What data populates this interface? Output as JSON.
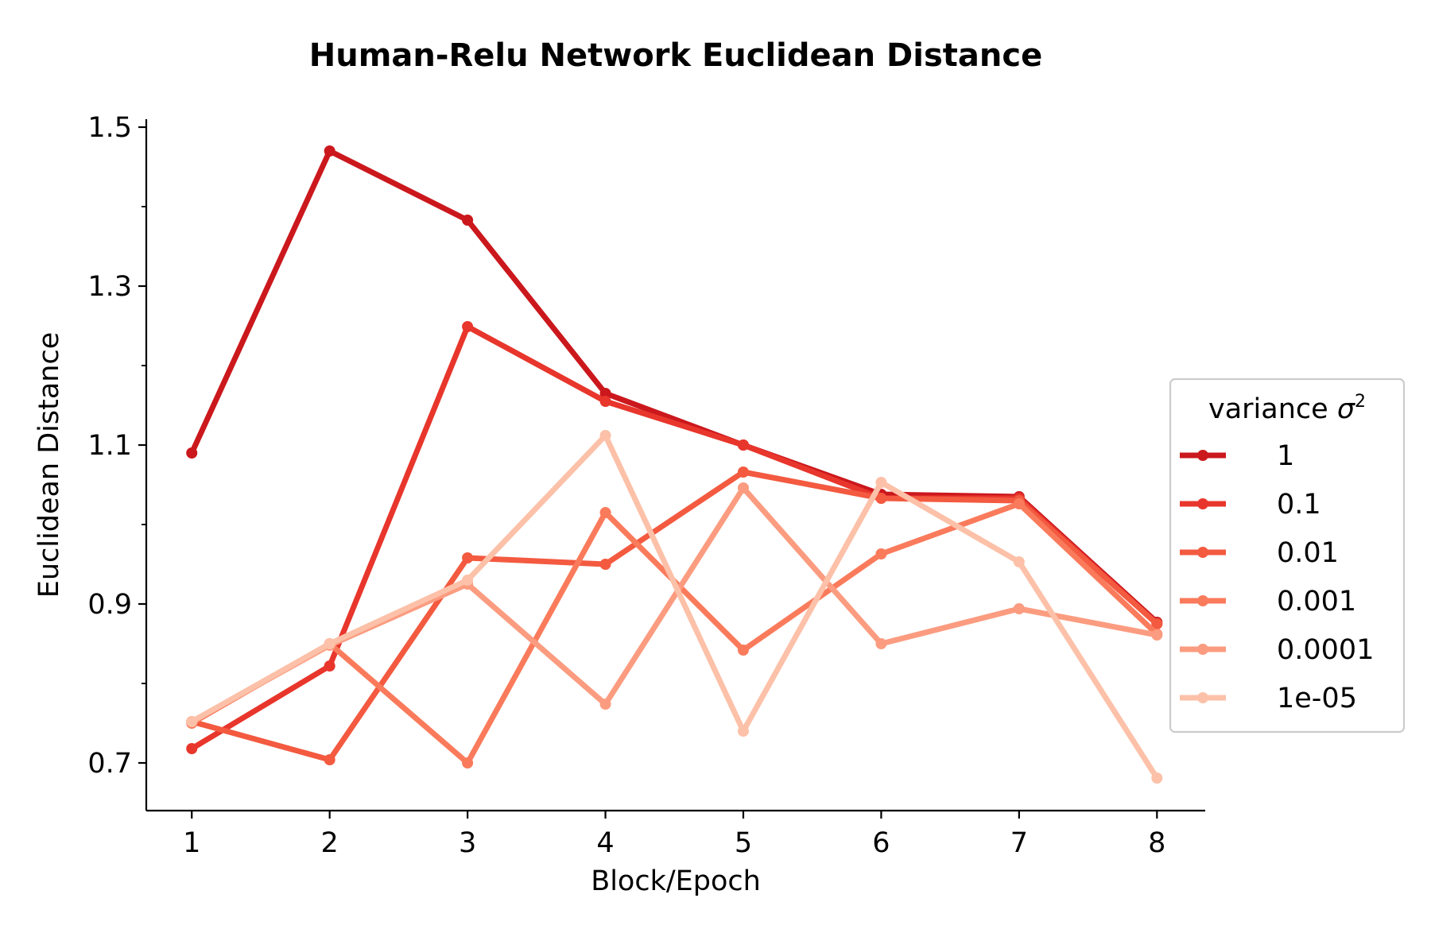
{
  "chart_data": {
    "type": "line",
    "title": "Human-Relu Network Euclidean Distance",
    "xlabel": "Block/Epoch",
    "ylabel": "Euclidean Distance",
    "x": [
      1,
      2,
      3,
      4,
      5,
      6,
      7,
      8
    ],
    "xlim": [
      0.67,
      8.35
    ],
    "ylim": [
      0.64,
      1.51
    ],
    "yticks": [
      0.7,
      0.9,
      1.1,
      1.3,
      1.5
    ],
    "yticks_minor": [
      0.8,
      1.0,
      1.2,
      1.4
    ],
    "ytick_labels": [
      "0.7",
      "0.9",
      "1.1",
      "1.3",
      "1.5"
    ],
    "xtick_labels": [
      "1",
      "2",
      "3",
      "4",
      "5",
      "6",
      "7",
      "8"
    ],
    "grid": false,
    "legend": {
      "title": "variance σ²",
      "title_prefix": "variance ",
      "title_symbol": "σ",
      "title_sup": "2",
      "placement": "center-right"
    },
    "series": [
      {
        "name": "1",
        "color": "#cb181d",
        "values": [
          1.09,
          1.47,
          1.383,
          1.165,
          1.1,
          1.038,
          1.035,
          0.877
        ]
      },
      {
        "name": "0.1",
        "color": "#e8362c",
        "values": [
          0.718,
          0.822,
          1.249,
          1.155,
          1.1,
          1.033,
          1.033,
          0.875
        ]
      },
      {
        "name": "0.01",
        "color": "#f35a40",
        "values": [
          0.752,
          0.704,
          0.958,
          0.95,
          1.066,
          1.033,
          1.03,
          0.875
        ]
      },
      {
        "name": "0.001",
        "color": "#fa7b5c",
        "values": [
          0.75,
          0.85,
          0.7,
          1.015,
          0.842,
          0.963,
          1.026,
          0.862
        ]
      },
      {
        "name": "0.0001",
        "color": "#fb9c80",
        "values": [
          0.752,
          0.848,
          0.925,
          0.774,
          1.046,
          0.85,
          0.894,
          0.861
        ]
      },
      {
        "name": "1e-05",
        "color": "#fcc1a8",
        "values": [
          0.752,
          0.85,
          0.93,
          1.112,
          0.74,
          1.053,
          0.953,
          0.681
        ]
      }
    ]
  }
}
